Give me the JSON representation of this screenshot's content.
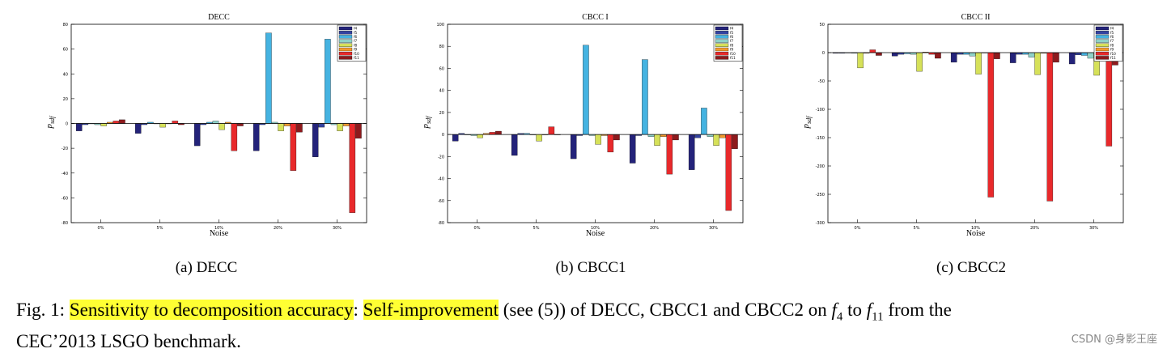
{
  "colors": {
    "f4": "#24237a",
    "f5": "#3443a0",
    "f6": "#45b3e1",
    "f7": "#8fd2c8",
    "f8": "#d6e159",
    "f9": "#f29a2e",
    "f10": "#e8292b",
    "f11": "#8e1a1d"
  },
  "chart_data": [
    {
      "type": "bar",
      "title": "DECC",
      "xlabel": "Noise",
      "ylabel": "p_sdf",
      "categories": [
        "0%",
        "5%",
        "10%",
        "20%",
        "30%"
      ],
      "ylim": [
        -80,
        80
      ],
      "yticks": [
        -80,
        -60,
        -40,
        -20,
        0,
        20,
        40,
        60,
        80
      ],
      "legend": "top-right",
      "series": [
        {
          "name": "f4",
          "values": [
            -6,
            -8,
            -18,
            -22,
            -27
          ]
        },
        {
          "name": "f5",
          "values": [
            -1,
            -1,
            -1,
            -1,
            -3
          ]
        },
        {
          "name": "f6",
          "values": [
            0,
            1,
            1,
            73,
            68
          ]
        },
        {
          "name": "f7",
          "values": [
            -1,
            0,
            2,
            1,
            -1
          ]
        },
        {
          "name": "f8",
          "values": [
            -2,
            -3,
            -5,
            -6,
            -6
          ]
        },
        {
          "name": "f9",
          "values": [
            1,
            0,
            1,
            -2,
            -2
          ]
        },
        {
          "name": "f10",
          "values": [
            2,
            2,
            -22,
            -38,
            -72
          ]
        },
        {
          "name": "f11",
          "values": [
            3,
            -1,
            -2,
            -7,
            -12
          ]
        }
      ]
    },
    {
      "type": "bar",
      "title": "CBCC I",
      "xlabel": "Noise",
      "ylabel": "p_sdf",
      "categories": [
        "0%",
        "5%",
        "10%",
        "20%",
        "30%"
      ],
      "ylim": [
        -80,
        100
      ],
      "yticks": [
        -80,
        -60,
        -40,
        -20,
        0,
        20,
        40,
        60,
        80,
        100
      ],
      "legend": "top-right",
      "series": [
        {
          "name": "f4",
          "values": [
            -6,
            -19,
            -22,
            -26,
            -32
          ]
        },
        {
          "name": "f5",
          "values": [
            1,
            1,
            -1,
            -1,
            -3
          ]
        },
        {
          "name": "f6",
          "values": [
            0,
            1,
            81,
            68,
            24
          ]
        },
        {
          "name": "f7",
          "values": [
            -1,
            0,
            -1,
            -2,
            -2
          ]
        },
        {
          "name": "f8",
          "values": [
            -3,
            -6,
            -9,
            -10,
            -10
          ]
        },
        {
          "name": "f9",
          "values": [
            1,
            0,
            -1,
            -2,
            -3
          ]
        },
        {
          "name": "f10",
          "values": [
            2,
            7,
            -16,
            -36,
            -69
          ]
        },
        {
          "name": "f11",
          "values": [
            3,
            0,
            -5,
            -5,
            -13
          ]
        }
      ]
    },
    {
      "type": "bar",
      "title": "CBCC II",
      "xlabel": "Noise",
      "ylabel": "p_sdf",
      "categories": [
        "0%",
        "5%",
        "10%",
        "20%",
        "30%"
      ],
      "ylim": [
        -300,
        50
      ],
      "yticks": [
        -300,
        -250,
        -200,
        -150,
        -100,
        -50,
        0,
        50
      ],
      "legend": "top-right",
      "series": [
        {
          "name": "f4",
          "values": [
            -1,
            -6,
            -17,
            -18,
            -20
          ]
        },
        {
          "name": "f5",
          "values": [
            -1,
            -3,
            -3,
            -3,
            -4
          ]
        },
        {
          "name": "f6",
          "values": [
            0,
            -2,
            -3,
            -3,
            -5
          ]
        },
        {
          "name": "f7",
          "values": [
            -1,
            -3,
            -6,
            -8,
            -10
          ]
        },
        {
          "name": "f8",
          "values": [
            -27,
            -33,
            -38,
            -39,
            -40
          ]
        },
        {
          "name": "f9",
          "values": [
            -1,
            1,
            0,
            -1,
            -1
          ]
        },
        {
          "name": "f10",
          "values": [
            5,
            -3,
            -255,
            -262,
            -165
          ]
        },
        {
          "name": "f11",
          "values": [
            -5,
            -10,
            -11,
            -17,
            -22
          ]
        }
      ]
    }
  ],
  "subcaptions": [
    "(a)  DECC",
    "(b)  CBCC1",
    "(c)  CBCC2"
  ],
  "caption": {
    "fig_label": "Fig. 1:",
    "hl1": "Sensitivity to decomposition accuracy",
    "colon": ":",
    "hl2": "Self-improvement",
    "text1": "(see (5)) of DECC, CBCC1 and CBCC2 on",
    "f_from": "f",
    "sub_from": "4",
    "to": "to",
    "f_to": "f",
    "sub_to": "11",
    "text2": "from the",
    "line2": "CEC’2013 LSGO benchmark."
  },
  "watermark": "CSDN @身影王座"
}
